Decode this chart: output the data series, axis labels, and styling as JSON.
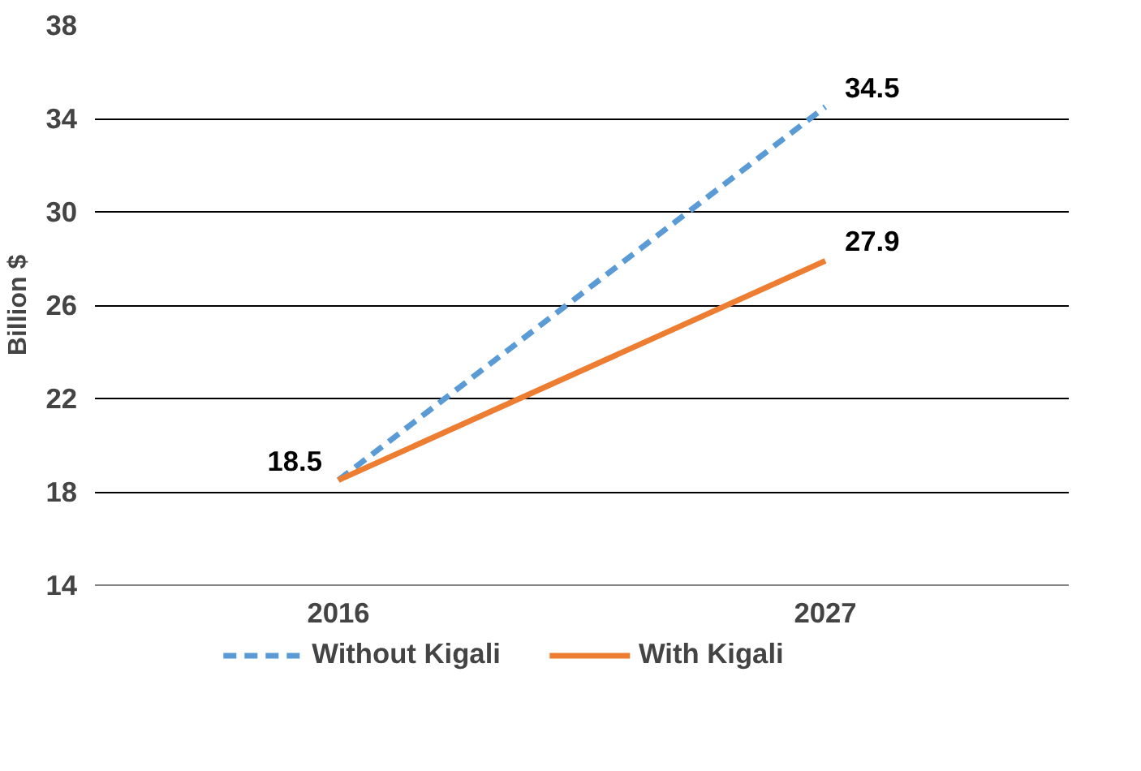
{
  "chart_data": {
    "type": "line",
    "ylabel": "Billion $",
    "categories": [
      "2016",
      "2027"
    ],
    "series": [
      {
        "name": "Without Kigali",
        "color": "#5b9bd5",
        "line_style": "dashed",
        "values": [
          18.5,
          34.5
        ],
        "value_labels": [
          null,
          "34.5"
        ]
      },
      {
        "name": "With Kigali",
        "color": "#ed7d31",
        "line_style": "solid",
        "values": [
          18.5,
          27.9
        ],
        "value_labels": [
          "18.5",
          "27.9"
        ]
      }
    ],
    "ylim": [
      14,
      38
    ],
    "yticks": [
      14,
      18,
      22,
      26,
      30,
      34,
      38
    ],
    "grid": "y",
    "legend": "bottom",
    "marker": "none"
  }
}
